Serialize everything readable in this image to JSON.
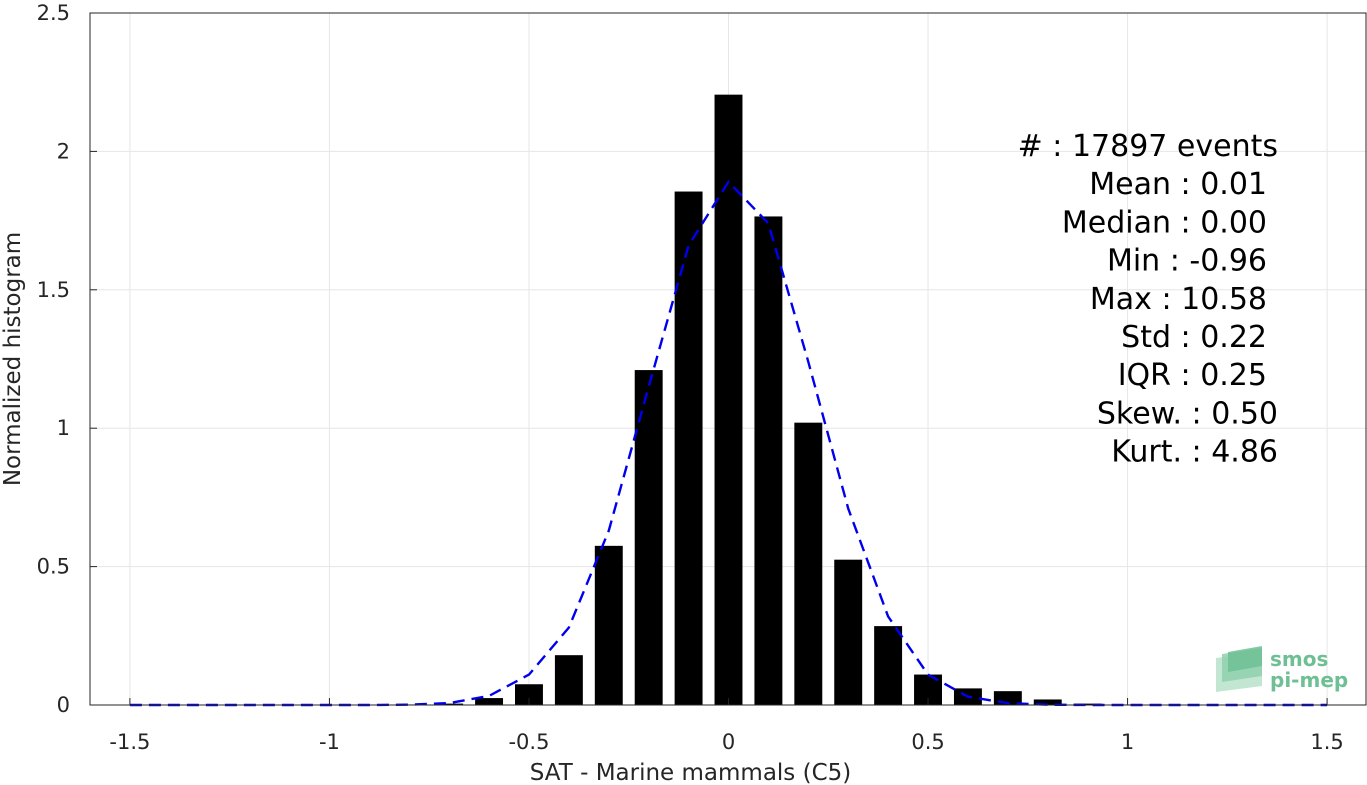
{
  "chart_data": {
    "type": "bar",
    "xlabel": "SAT - Marine mammals (C5)",
    "ylabel": "Normalized histogram",
    "xlim": [
      -1.6,
      1.6
    ],
    "ylim": [
      0,
      2.5
    ],
    "xticks": [
      -1.5,
      -1,
      -0.5,
      0,
      0.5,
      1,
      1.5
    ],
    "xtick_labels": [
      "-1.5",
      "-1",
      "-0.5",
      "0",
      "0.5",
      "1",
      "1.5"
    ],
    "yticks": [
      0,
      0.5,
      1,
      1.5,
      2,
      2.5
    ],
    "ytick_labels": [
      "0",
      "0.5",
      "1",
      "1.5",
      "2",
      "2.5"
    ],
    "grid": true,
    "bar_width": 0.07,
    "bars": {
      "x": [
        -0.9,
        -0.8,
        -0.7,
        -0.6,
        -0.5,
        -0.4,
        -0.3,
        -0.2,
        -0.1,
        0.0,
        0.1,
        0.2,
        0.3,
        0.4,
        0.5,
        0.6,
        0.7,
        0.8,
        0.9,
        1.0
      ],
      "values": [
        0.0,
        0.002,
        0.005,
        0.025,
        0.075,
        0.18,
        0.575,
        1.21,
        1.855,
        2.205,
        1.765,
        1.02,
        0.525,
        0.285,
        0.11,
        0.06,
        0.05,
        0.02,
        0.005,
        0.002
      ],
      "color": "#000000"
    },
    "gaussian_fit": {
      "style": "dashed",
      "color": "#0000ee",
      "x": [
        -1.5,
        -1.4,
        -1.3,
        -1.2,
        -1.1,
        -1.0,
        -0.9,
        -0.8,
        -0.7,
        -0.6,
        -0.5,
        -0.4,
        -0.3,
        -0.2,
        -0.1,
        0.0,
        0.1,
        0.2,
        0.3,
        0.4,
        0.5,
        0.6,
        0.7,
        0.8,
        0.9,
        1.0,
        1.1,
        1.2,
        1.3,
        1.4,
        1.5
      ],
      "y": [
        0,
        0,
        0,
        0,
        0,
        0,
        0,
        0.001,
        0.007,
        0.033,
        0.11,
        0.28,
        0.63,
        1.15,
        1.66,
        1.89,
        1.74,
        1.24,
        0.71,
        0.32,
        0.11,
        0.03,
        0.007,
        0.001,
        0,
        0,
        0,
        0,
        0,
        0,
        0
      ]
    },
    "stats": [
      {
        "label": "#  : 17897 events"
      },
      {
        "label": "Mean : 0.01"
      },
      {
        "label": "Median : 0.00"
      },
      {
        "label": "Min : -0.96"
      },
      {
        "label": "Max : 10.58"
      },
      {
        "label": "Std : 0.22"
      },
      {
        "label": "IQR : 0.25"
      },
      {
        "label": "Skew. : 0.50"
      },
      {
        "label": "Kurt. : 4.86"
      }
    ]
  },
  "logo": {
    "line1": "smos",
    "line2": "pi-mep",
    "color": "#6fbf94"
  }
}
